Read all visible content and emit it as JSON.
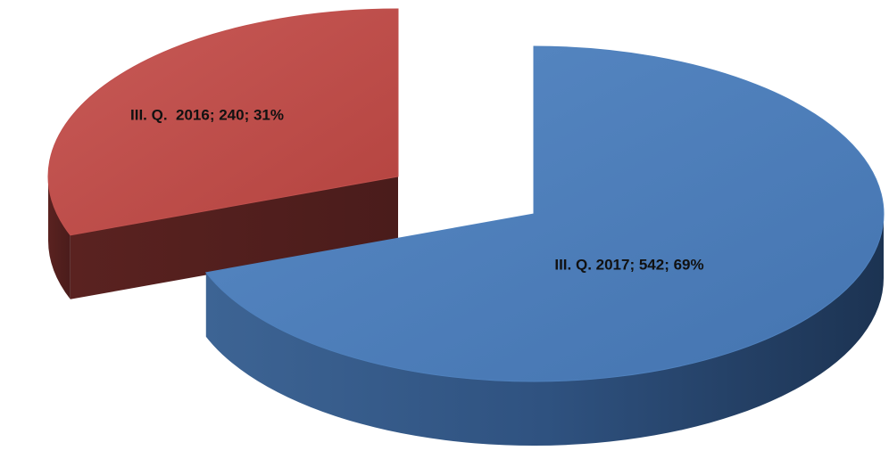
{
  "chart_data": {
    "type": "pie3d",
    "values": [
      240,
      542
    ],
    "value_labels": [
      "III. Q.  2016; 240; 31%",
      "III. Q. 2017; 542; 69%"
    ],
    "colors": [
      "#c0504d",
      "#4f81bd"
    ]
  }
}
